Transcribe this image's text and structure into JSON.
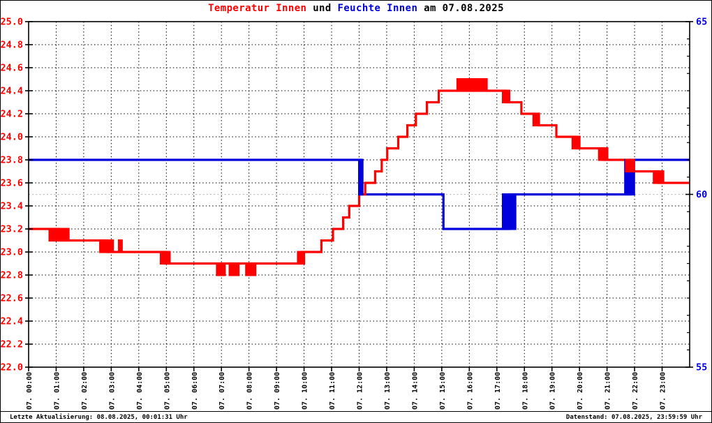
{
  "title": {
    "temperature_label": "Temperatur Innen",
    "connector": " und ",
    "humidity_label": "Feuchte Innen",
    "date_suffix": " am 07.08.2025",
    "full": "Temperatur Innen und Feuchte Innen am 07.08.2025"
  },
  "footer": {
    "left": "Letzte Aktualisierung: 08.08.2025, 00:01:31 Uhr",
    "right": "Datenstand: 07.08.2025, 23:59:59 Uhr"
  },
  "colors": {
    "temperature": "#ff0000",
    "humidity": "#0000dd",
    "grid": "#000000",
    "grid_soft": "#bbbbbb",
    "axis": "#000000",
    "text": "#000000"
  },
  "chart_data": {
    "type": "line",
    "title": "Temperatur Innen und Feuchte Innen am 07.08.2025",
    "grid": "dotted, hourly vertical, 0.2°C horizontal, gray dotted line at 60% humidity",
    "x_axis": {
      "hours_range": [
        0,
        24
      ],
      "tick_labels": [
        "07. 00:00",
        "07. 01:00",
        "07. 02:00",
        "07. 03:00",
        "07. 04:00",
        "07. 05:00",
        "07. 06:00",
        "07. 07:00",
        "07. 08:00",
        "07. 09:00",
        "07. 10:00",
        "07. 11:00",
        "07. 12:00",
        "07. 13:00",
        "07. 14:00",
        "07. 15:00",
        "07. 16:00",
        "07. 17:00",
        "07. 18:00",
        "07. 19:00",
        "07. 20:00",
        "07. 21:00",
        "07. 22:00",
        "07. 23:00"
      ]
    },
    "y_left": {
      "name": "Temperatur Innen (°C)",
      "range": [
        22.0,
        25.0
      ],
      "tick_step": 0.2,
      "tick_labels": [
        "25.0",
        "24.8",
        "24.6",
        "24.4",
        "24.2",
        "24.0",
        "23.8",
        "23.6",
        "23.4",
        "23.2",
        "23.0",
        "22.8",
        "22.6",
        "22.4",
        "22.2",
        "22.0"
      ]
    },
    "y_right": {
      "name": "Feuchte Innen (%)",
      "range": [
        55,
        65
      ],
      "major_ticks": [
        65,
        60,
        55
      ],
      "minor_tick_step": 0.5,
      "tick_labels": [
        "65",
        "60",
        "55"
      ],
      "soft_gridline_at": 60
    },
    "series": [
      {
        "name": "Feuchte Innen",
        "axis": "right",
        "color": "#0000dd",
        "interpolation": "step-after",
        "steps": [
          [
            0,
            61
          ],
          [
            12.05,
            60
          ],
          [
            15.06,
            59
          ],
          [
            17.45,
            60
          ],
          [
            21.85,
            61
          ]
        ],
        "oscillation_bands": [
          [
            12.0,
            12.12,
            60,
            61
          ],
          [
            17.22,
            17.67,
            59,
            60
          ],
          [
            21.66,
            21.98,
            60,
            61
          ]
        ]
      },
      {
        "name": "Temperatur Innen",
        "axis": "left",
        "color": "#ff0000",
        "interpolation": "step-after",
        "steps": [
          [
            0,
            23.2
          ],
          [
            1.1,
            23.1
          ],
          [
            2.85,
            23.0
          ],
          [
            4.95,
            22.9
          ],
          [
            9.92,
            23.0
          ],
          [
            10.63,
            23.1
          ],
          [
            11.05,
            23.2
          ],
          [
            11.42,
            23.3
          ],
          [
            11.64,
            23.4
          ],
          [
            12.0,
            23.5
          ],
          [
            12.22,
            23.6
          ],
          [
            12.58,
            23.7
          ],
          [
            12.82,
            23.8
          ],
          [
            13.02,
            23.9
          ],
          [
            13.42,
            24.0
          ],
          [
            13.75,
            24.1
          ],
          [
            14.06,
            24.2
          ],
          [
            14.46,
            24.3
          ],
          [
            14.89,
            24.4
          ],
          [
            17.32,
            24.3
          ],
          [
            17.89,
            24.2
          ],
          [
            18.52,
            24.1
          ],
          [
            19.16,
            24.0
          ],
          [
            19.87,
            23.9
          ],
          [
            20.85,
            23.8
          ],
          [
            21.82,
            23.7
          ],
          [
            22.85,
            23.6
          ]
        ],
        "oscillation_bands": [
          [
            0.76,
            1.45,
            23.1,
            23.2
          ],
          [
            2.6,
            3.06,
            23.0,
            23.1
          ],
          [
            3.28,
            3.38,
            23.0,
            23.1
          ],
          [
            4.8,
            5.12,
            22.9,
            23.0
          ],
          [
            6.84,
            7.12,
            22.8,
            22.9
          ],
          [
            7.3,
            7.62,
            22.8,
            22.9
          ],
          [
            7.9,
            8.23,
            22.8,
            22.9
          ],
          [
            9.78,
            10.0,
            22.9,
            23.0
          ],
          [
            15.57,
            16.63,
            24.4,
            24.5
          ],
          [
            17.22,
            17.45,
            24.3,
            24.4
          ],
          [
            18.33,
            18.53,
            24.1,
            24.2
          ],
          [
            19.75,
            20.0,
            23.9,
            24.0
          ],
          [
            20.71,
            21.01,
            23.8,
            23.9
          ],
          [
            21.69,
            21.98,
            23.7,
            23.8
          ],
          [
            22.7,
            23.04,
            23.6,
            23.7
          ]
        ]
      }
    ]
  }
}
